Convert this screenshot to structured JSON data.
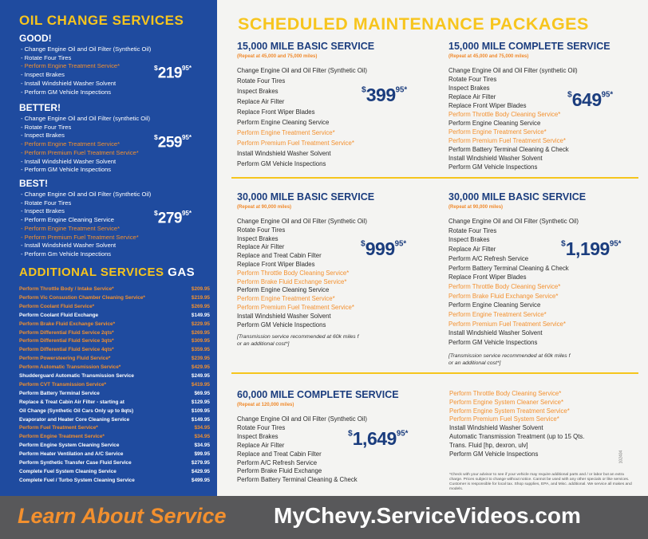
{
  "oil_change": {
    "title": "OIL CHANGE SERVICES",
    "tiers": [
      {
        "name": "GOOD!",
        "items": [
          "- Change Engine Oil and Oil Filter (Synthetic Oil)",
          "- Rotate Four Tires",
          {
            "text": "- Perform Engine Treatment Service*",
            "highlight": true
          },
          "- Inspect Brakes",
          "- Install Windshield Washer Solvent",
          "- Perform GM Vehicle Inspections"
        ],
        "price": {
          "symbol": "$",
          "amount": "219",
          "cents": "95",
          "mark": "*"
        }
      },
      {
        "name": "BETTER!",
        "items": [
          "- Change Engine Oil and Oil Filter (synthetic Oil)",
          "- Rotate Four Tires",
          "- Inspect Brakes",
          {
            "text": "- Perform Engine Treatment Service*",
            "highlight": true
          },
          {
            "text": "- Perform Premium Fuel Treatment Service*",
            "highlight": true
          },
          "- Install Windshield Washer Solvent",
          "- Perform GM Vehicle Inspections"
        ],
        "price": {
          "symbol": "$",
          "amount": "259",
          "cents": "95",
          "mark": "*"
        }
      },
      {
        "name": "BEST!",
        "items": [
          "- Change Engine Oil and Oil Filter (Synthetic Oil)",
          "- Rotate Four Tires",
          "- Inspect Brakes",
          "- Perform Engine Cleaning Service",
          {
            "text": "- Perform Engine Treatment Service*",
            "highlight": true
          },
          {
            "text": "- Perform Premium Fuel Treatment Service*",
            "highlight": true
          },
          "- Install Windshield Washer Solvent",
          "- Perform Gm Vehicle Inspections"
        ],
        "price": {
          "symbol": "$",
          "amount": "279",
          "cents": "95",
          "mark": "*"
        }
      }
    ]
  },
  "additional_services": {
    "title": "ADDITIONAL SERVICES",
    "fuel": "GAS",
    "rows": [
      {
        "service": "Perform Throttle Body / Intake Service*",
        "price": "$209.95",
        "highlight": true
      },
      {
        "service": "Perform Vic Consustion Chamber Cleaning Service*",
        "price": "$219.95",
        "highlight": true
      },
      {
        "service": "Perform Coolant Fluid Service*",
        "price": "$269.95",
        "highlight": true
      },
      {
        "service": "Perform Coolant Fluid Exchange",
        "price": "$149.95"
      },
      {
        "service": "Perform Brake Fluid Exchange Service*",
        "price": "$229.95",
        "highlight": true
      },
      {
        "service": "Perform Differential Fluid Service 2qts*",
        "price": "$269.95",
        "highlight": true
      },
      {
        "service": "Perform Differential Fluid Service 3qts*",
        "price": "$309.95",
        "highlight": true
      },
      {
        "service": "Perform Differential Fluid Service 4qts*",
        "price": "$359.95",
        "highlight": true
      },
      {
        "service": "Perform Powersteering Fluid Service*",
        "price": "$239.95",
        "highlight": true
      },
      {
        "service": "Perform Automatic Transmission Service*",
        "price": "$429.95",
        "highlight": true
      },
      {
        "service": "Shudderguard Automatic Transmission Service",
        "price": "$249.95"
      },
      {
        "service": "Perform CVT Transmission Service*",
        "price": "$419.95",
        "highlight": true
      },
      {
        "service": "Perform Battery Terminal Service",
        "price": "$69.95"
      },
      {
        "service": "Replace & Treat Cabin Air Filter - starting at",
        "price": "$129.95"
      },
      {
        "service": "Oil Change (Synthetic Oil Cars Only up to 8qts)",
        "price": "$109.95"
      },
      {
        "service": "Evaporator and Heater Core Cleaning Service",
        "price": "$149.95"
      },
      {
        "service": "Perform Fuel Treatment Service*",
        "price": "$34.95",
        "highlight": true
      },
      {
        "service": "Perform Engine Treatment Service*",
        "price": "$34.95",
        "highlight": true
      },
      {
        "service": "Perform Engine System Cleaning Service",
        "price": "$34.95"
      },
      {
        "service": "Perform Heater Ventilation and A/C Service",
        "price": "$99.95"
      },
      {
        "service": "Perform Synthetic Transfer Case Fluid Service",
        "price": "$279.95"
      },
      {
        "service": "Complete Fuel System Cleaning Service",
        "price": "$429.95"
      },
      {
        "service": "Complete Fuel / Turbo System Cleaning Service",
        "price": "$499.95"
      }
    ]
  },
  "maintenance": {
    "title": "SCHEDULED MAINTENANCE PACKAGES",
    "packages": [
      {
        "title": "15,000 MILE BASIC SERVICE",
        "repeat": "(Repeat at 45,000 and 75,000 miles)",
        "items": [
          "Change Engine Oil and Oil Filter (Synthetic Oil)",
          "Rotate Four Tires",
          "Inspect Brakes",
          "Replace Air Filter",
          "Replace Front Wiper Blades",
          "Perform Engine Cleaning Service",
          {
            "text": "Perform Engine Treatment Service*",
            "highlight": true
          },
          {
            "text": "Perform Premium Fuel Treatment Service*",
            "highlight": true
          },
          "Install Windshield Washer Solvent",
          "Perform GM Vehicle Inspections"
        ],
        "price": {
          "symbol": "$",
          "amount": "399",
          "cents": "95",
          "mark": "*"
        }
      },
      {
        "title": "15,000 MILE COMPLETE SERVICE",
        "repeat": "(Repeat at 45,000 and 75,000 miles)",
        "items": [
          "Change Engine Oil and Oil Filter (synthetic Oil)",
          "Rotate Four Tires",
          "Inspect Brakes",
          "Replace Air Filter",
          "Replace Front Wiper Blades",
          {
            "text": "Perform Throttle Body Cleaning Service*",
            "highlight": true
          },
          "Perform Engine Cleaning Service",
          {
            "text": "Perform Engine Treatment Service*",
            "highlight": true
          },
          {
            "text": "Perform Premium Fuel Treatment Service*",
            "highlight": true
          },
          "Perform Battery Terminal Cleaning & Check",
          "Install Windshield Washer Solvent",
          "Perform GM Vehicle Inspections"
        ],
        "price": {
          "symbol": "$",
          "amount": "649",
          "cents": "95",
          "mark": "*"
        }
      },
      {
        "title": "30,000 MILE BASIC SERVICE",
        "repeat": "(Repeat at 90,000 miles)",
        "items": [
          "Change Engine Oil and Oil Filter (Synthetic Oil)",
          "Rotate Four Tires",
          "Inspect Brakes",
          "Replace Air Filter",
          "Replace and Treat Cabin Filter",
          "Replace Front Wiper Blades",
          {
            "text": "Perform Throttle Body Cleaning Service*",
            "highlight": true
          },
          {
            "text": "Perform Brake Fluid Exchange Service*",
            "highlight": true
          },
          "Perform Engine Cleaning Service",
          {
            "text": "Perform Engine Treatment Service*",
            "highlight": true
          },
          {
            "text": "Perform Premium Fuel Treatment Service*",
            "highlight": true
          },
          "Install Windshield Washer Solvent",
          "Perform GM Vehicle Inspections"
        ],
        "note": [
          "[Transmission service recommended at 60k miles f",
          "or an additional cost*]"
        ],
        "price": {
          "symbol": "$",
          "amount": "999",
          "cents": "95",
          "mark": "*"
        }
      },
      {
        "title": "30,000 MILE BASIC SERVICE",
        "repeat": "(Repeat at 90,000 miles)",
        "items": [
          "Change Engine Oil and Oil Filter (Synthetic Oil)",
          "Rotate Four Tires",
          "Inspect Brakes",
          "Replace Air Filter",
          "Perform A/C Refresh Service",
          "Perform Battery Terminal Cleaning & Check",
          "Replace Front Wiper Blades",
          {
            "text": "Perform Throttle Body Cleaning Service*",
            "highlight": true
          },
          {
            "text": "Perform Brake Fluid Exchange Service*",
            "highlight": true
          },
          "Perform Engine Cleaning Service",
          {
            "text": "Perform Engine Treatment Service*",
            "highlight": true
          },
          {
            "text": "Perform Premium Fuel Treatment Service*",
            "highlight": true
          },
          "Install Windshield Washer Solvent",
          "Perform GM Vehicle Inspections"
        ],
        "note": [
          "[Transmission service recommended at 60k miles f",
          "or an additional cost*]"
        ],
        "price": {
          "symbol": "$",
          "amount": "1,199",
          "cents": "95",
          "mark": "*"
        }
      },
      {
        "title": "60,000 MILE COMPLETE SERVICE",
        "repeat": "(Repeat at 120,000 miles)",
        "items": [
          "Change Engine Oil and Oil Filter (Synthetic Oil)",
          "Rotate Four Tires",
          "Inspect Brakes",
          "Replace Air Filter",
          "Replace and Treat Cabin Filter",
          "Perform A/C Refresh Service",
          "Perform Brake Fluid Exchange",
          "Perform Battery Terminal Cleaning & Check"
        ],
        "items_continued": [
          {
            "text": "Perform Throttle Body Cleaning Service*",
            "highlight": true
          },
          {
            "text": "Perform Engine System Cleaner Service*",
            "highlight": true
          },
          {
            "text": "Perform Engine System Treatment Service*",
            "highlight": true
          },
          {
            "text": "Perform Premium Fuel System Service*",
            "highlight": true
          },
          "Install Windshield Washer Solvent",
          "Automatic Transmission Treatment (up to 15 Qts.",
          "Trans. Fluid [hp, dexron, ulv]",
          "Perform GM Vehicle Inspections"
        ],
        "price": {
          "symbol": "$",
          "amount": "1,649",
          "cents": "95",
          "mark": "*"
        }
      }
    ]
  },
  "disclaimer": "*Check with your advisor to see if your vehicle may require additional parts and / or labor but an extra charge. Prices subject to change without notice. Cannot be used with any other specials or like services. Customer is responsible for local tax. Shop supplies, EPA, and Misc. additional. We service all makes and models.",
  "code": "102404",
  "footer": {
    "left": "Learn About Service",
    "right": "MyChevy.ServiceVideos.com"
  }
}
